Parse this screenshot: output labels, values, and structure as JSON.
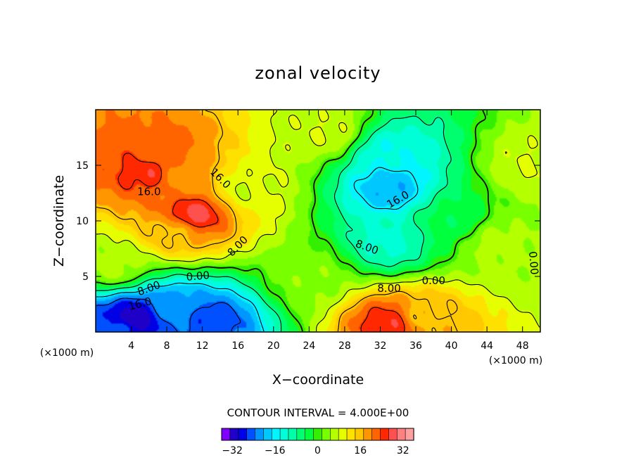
{
  "chart_data": {
    "type": "heatmap",
    "title": "zonal velocity",
    "xlabel": "X−coordinate",
    "ylabel": "Z−coordinate",
    "x_unit_left": "(×1000 m)",
    "x_unit_right": "(×1000 m)",
    "xlim": [
      0,
      50
    ],
    "ylim": [
      0,
      20
    ],
    "x_ticks": [
      4,
      8,
      12,
      16,
      20,
      24,
      28,
      32,
      36,
      40,
      44,
      48
    ],
    "y_ticks": [
      5,
      10,
      15
    ],
    "contour_interval_text": "CONTOUR INTERVAL = 4.000E+00",
    "contour_interval": 4.0,
    "colorbar": {
      "range": [
        -36,
        36
      ],
      "colors": [
        "#8000ff",
        "#1e00c8",
        "#0000e6",
        "#0050ff",
        "#0096ff",
        "#00c8ff",
        "#00f5ff",
        "#00ffd7",
        "#00ffaa",
        "#00ff6e",
        "#00ff3c",
        "#32f000",
        "#78ff00",
        "#b4ff00",
        "#e6ff00",
        "#ffe100",
        "#ffc800",
        "#ff9600",
        "#ff6400",
        "#ff2800",
        "#ff5050",
        "#ff8080",
        "#ffa0a0"
      ],
      "tick_labels": [
        "−32",
        "−16",
        "0",
        "16",
        "32"
      ],
      "tick_values": [
        -32,
        -16,
        0,
        16,
        32
      ]
    },
    "contour_labels": [
      "16.0",
      "16.0",
      "8.00",
      "0.00",
      "8.00",
      "16.0",
      "16.0",
      "8.00",
      "0.00",
      "8.00",
      "0.00"
    ],
    "features": [
      {
        "x": 7,
        "z": 16,
        "u": 22
      },
      {
        "x": 10,
        "z": 14,
        "u": 18
      },
      {
        "x": 6,
        "z": 14.5,
        "u": 26
      },
      {
        "x": 11,
        "z": 10.5,
        "u": 28
      },
      {
        "x": 9,
        "z": 9,
        "u": 16
      },
      {
        "x": 26,
        "z": 18,
        "u": 8
      },
      {
        "x": 33,
        "z": 13,
        "u": -20
      },
      {
        "x": 33,
        "z": 16,
        "u": -14
      },
      {
        "x": 33,
        "z": 8,
        "u": -12
      },
      {
        "x": 40,
        "z": 10,
        "u": -4
      },
      {
        "x": 4,
        "z": 1,
        "u": -34
      },
      {
        "x": 9,
        "z": 2,
        "u": -22
      },
      {
        "x": 13,
        "z": 1,
        "u": -26
      },
      {
        "x": 3,
        "z": 0.5,
        "u": -24
      },
      {
        "x": 33,
        "z": 0.8,
        "u": 26
      },
      {
        "x": 37,
        "z": 1.5,
        "u": 16
      },
      {
        "x": 24,
        "z": 5,
        "u": 4
      },
      {
        "x": 45,
        "z": 8,
        "u": 6
      },
      {
        "x": 49,
        "z": 15,
        "u": 8
      },
      {
        "x": 2,
        "z": 6,
        "u": 6
      },
      {
        "x": 17,
        "z": 13,
        "u": 8
      }
    ]
  }
}
